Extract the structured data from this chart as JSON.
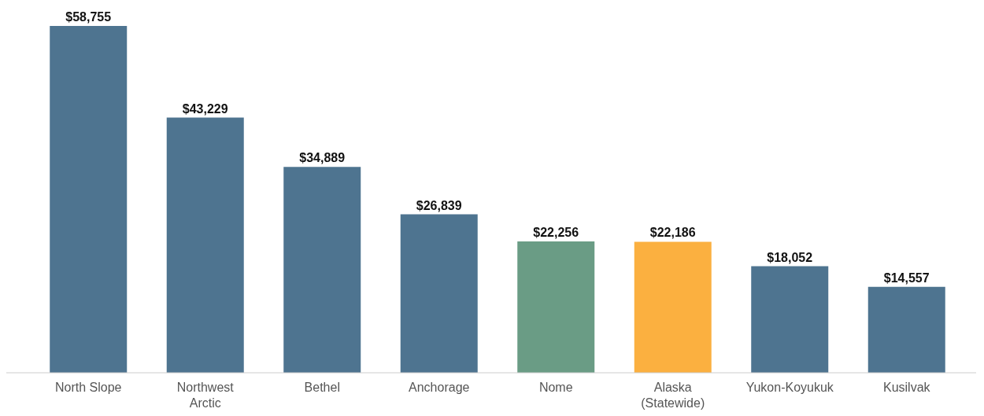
{
  "chart_data": {
    "type": "bar",
    "categories": [
      "North Slope",
      "Northwest Arctic",
      "Bethel",
      "Anchorage",
      "Nome",
      "Alaska (Statewide)",
      "Yukon-Koyukuk",
      "Kusilvak"
    ],
    "values": [
      58755,
      43229,
      34889,
      26839,
      22256,
      22186,
      18052,
      14557
    ],
    "colors": [
      "#4e7490",
      "#4e7490",
      "#4e7490",
      "#4e7490",
      "#6a9c85",
      "#fbb040",
      "#4e7490",
      "#4e7490"
    ],
    "value_labels": [
      "$58,755",
      "$43,229",
      "$34,889",
      "$26,839",
      "$22,256",
      "$22,186",
      "$18,052",
      "$14,557"
    ]
  }
}
